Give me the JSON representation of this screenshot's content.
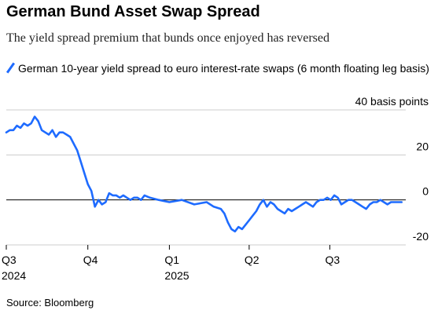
{
  "header": {
    "title": "German Bund Asset Swap Spread",
    "subtitle": "The yield spread premium that bunds once enjoyed has reversed"
  },
  "footer": {
    "source": "Source: Bloomberg"
  },
  "colors": {
    "series": "#1e6bff",
    "grid": "#cccccc",
    "zero": "#000000"
  },
  "chart_data": {
    "type": "line",
    "title": "German Bund Asset Swap Spread",
    "subtitle": "The yield spread premium that bunds once enjoyed has reversed",
    "ylabel": "basis points",
    "ylim": [
      -20,
      40
    ],
    "yticks": [
      {
        "value": 40,
        "label": "40 basis points"
      },
      {
        "value": 20,
        "label": "20"
      },
      {
        "value": 0,
        "label": "0"
      },
      {
        "value": -20,
        "label": "-20"
      }
    ],
    "xlim": [
      "2024-07-01",
      "2025-09-22"
    ],
    "xticks": [
      {
        "date": "2024-07-01",
        "label": "Q3",
        "sublabel": "2024"
      },
      {
        "date": "2024-10-01",
        "label": "Q4",
        "sublabel": ""
      },
      {
        "date": "2025-01-01",
        "label": "Q1",
        "sublabel": "2025"
      },
      {
        "date": "2025-04-01",
        "label": "Q2",
        "sublabel": ""
      },
      {
        "date": "2025-07-01",
        "label": "Q3",
        "sublabel": ""
      }
    ],
    "legend": "top-left",
    "grid": "horizontal",
    "series": [
      {
        "name": "German 10-year yield spread to euro interest-rate swaps (6 month floating leg basis)",
        "x": [
          "2024-07-01",
          "2024-07-05",
          "2024-07-09",
          "2024-07-13",
          "2024-07-17",
          "2024-07-21",
          "2024-07-25",
          "2024-07-29",
          "2024-08-02",
          "2024-08-06",
          "2024-08-10",
          "2024-08-14",
          "2024-08-18",
          "2024-08-22",
          "2024-08-26",
          "2024-08-30",
          "2024-09-03",
          "2024-09-07",
          "2024-09-11",
          "2024-09-15",
          "2024-09-19",
          "2024-09-23",
          "2024-09-27",
          "2024-10-01",
          "2024-10-05",
          "2024-10-09",
          "2024-10-13",
          "2024-10-17",
          "2024-10-21",
          "2024-10-25",
          "2024-10-29",
          "2024-11-02",
          "2024-11-06",
          "2024-11-10",
          "2024-11-14",
          "2024-11-18",
          "2024-11-22",
          "2024-11-26",
          "2024-11-30",
          "2024-12-04",
          "2024-12-10",
          "2024-12-20",
          "2025-01-01",
          "2025-01-15",
          "2025-01-29",
          "2025-02-12",
          "2025-02-20",
          "2025-02-28",
          "2025-03-04",
          "2025-03-08",
          "2025-03-12",
          "2025-03-16",
          "2025-03-20",
          "2025-03-24",
          "2025-03-28",
          "2025-04-01",
          "2025-04-05",
          "2025-04-09",
          "2025-04-13",
          "2025-04-17",
          "2025-04-21",
          "2025-04-25",
          "2025-04-29",
          "2025-05-03",
          "2025-05-07",
          "2025-05-11",
          "2025-05-15",
          "2025-05-19",
          "2025-05-23",
          "2025-05-27",
          "2025-05-31",
          "2025-06-04",
          "2025-06-08",
          "2025-06-12",
          "2025-06-16",
          "2025-06-20",
          "2025-06-24",
          "2025-06-28",
          "2025-07-02",
          "2025-07-06",
          "2025-07-10",
          "2025-07-14",
          "2025-07-18",
          "2025-07-22",
          "2025-07-26",
          "2025-07-30",
          "2025-08-03",
          "2025-08-07",
          "2025-08-11",
          "2025-08-15",
          "2025-08-19",
          "2025-08-23",
          "2025-08-27",
          "2025-08-31",
          "2025-09-04",
          "2025-09-08",
          "2025-09-12",
          "2025-09-16",
          "2025-09-20"
        ],
        "y": [
          30,
          31,
          31,
          33,
          32,
          34,
          33,
          34,
          37,
          35,
          31,
          30,
          29,
          31,
          28,
          30,
          30,
          29,
          28,
          25,
          22,
          17,
          12,
          7,
          4,
          -3,
          0,
          -2,
          -1,
          3,
          2,
          2,
          1,
          2,
          1,
          0,
          1,
          1,
          0,
          2,
          1,
          0,
          -1,
          0,
          -2,
          -1,
          -3,
          -4,
          -6,
          -10,
          -13,
          -14,
          -12,
          -13,
          -11,
          -9,
          -7,
          -5,
          -2,
          0,
          -3,
          -1,
          -2,
          -4,
          -5,
          -6,
          -4,
          -5,
          -4,
          -3,
          -2,
          -1,
          -2,
          -3,
          -1,
          0,
          0,
          1,
          0,
          2,
          1,
          -2,
          -1,
          0,
          0,
          -1,
          -2,
          -3,
          -4,
          -2,
          -1,
          -1,
          0,
          -1,
          -2,
          -1,
          -1,
          -1,
          -1
        ]
      }
    ]
  }
}
